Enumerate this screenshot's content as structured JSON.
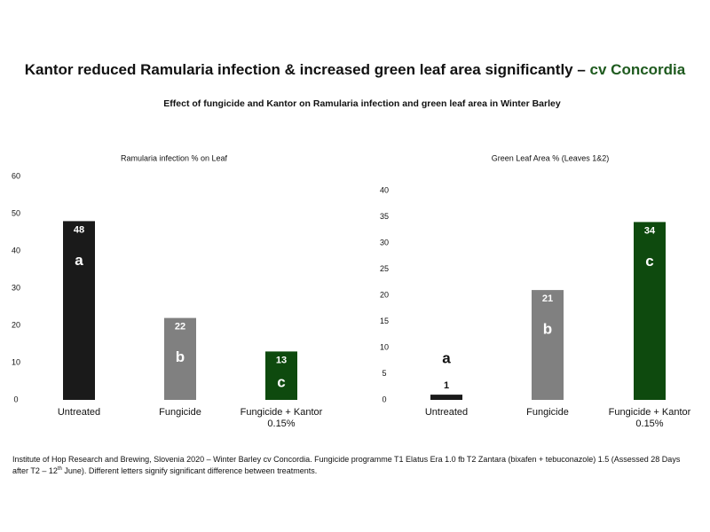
{
  "header": {
    "title": "Kantor reduced Ramularia infection & increased green leaf area significantly – ",
    "title_highlight": "cv Concordia",
    "subtitle": "Effect of fungicide and Kantor on Ramularia infection and green leaf area in Winter Barley"
  },
  "chart_data": [
    {
      "type": "bar",
      "title": "Ramularia infection % on Leaf",
      "categories": [
        "Untreated",
        "Fungicide",
        "Fungicide + Kantor 0.15%"
      ],
      "values": [
        48,
        22,
        13
      ],
      "annotations": [
        "a",
        "b",
        "c"
      ],
      "colors": [
        "#1a1a1a",
        "#808080",
        "#0e4a0e"
      ],
      "ylim": [
        0,
        60
      ],
      "yticks": [
        0,
        10,
        20,
        30,
        40,
        50,
        60
      ],
      "grid": false
    },
    {
      "type": "bar",
      "title": "Green Leaf Area % (Leaves 1&2)",
      "categories": [
        "Untreated",
        "Fungicide",
        "Fungicide + Kantor 0.15%"
      ],
      "values": [
        1,
        21,
        34
      ],
      "annotations": [
        "a",
        "b",
        "c"
      ],
      "colors": [
        "#1a1a1a",
        "#808080",
        "#0e4a0e"
      ],
      "ylim": [
        0,
        40
      ],
      "yticks": [
        0,
        5,
        10,
        15,
        20,
        25,
        30,
        35,
        40
      ],
      "grid": false
    }
  ],
  "footnote": {
    "before": "Institute of Hop Research and Brewing, Slovenia 2020 – Winter Barley cv Concordia. Fungicide programme T1 Elatus Era 1.0 fb T2 Zantara (bixafen + tebuconazole) 1.5 (Assessed 28 Days after T2 – 12",
    "sup": "th",
    "after": " June). Different letters signify significant difference between treatments."
  }
}
